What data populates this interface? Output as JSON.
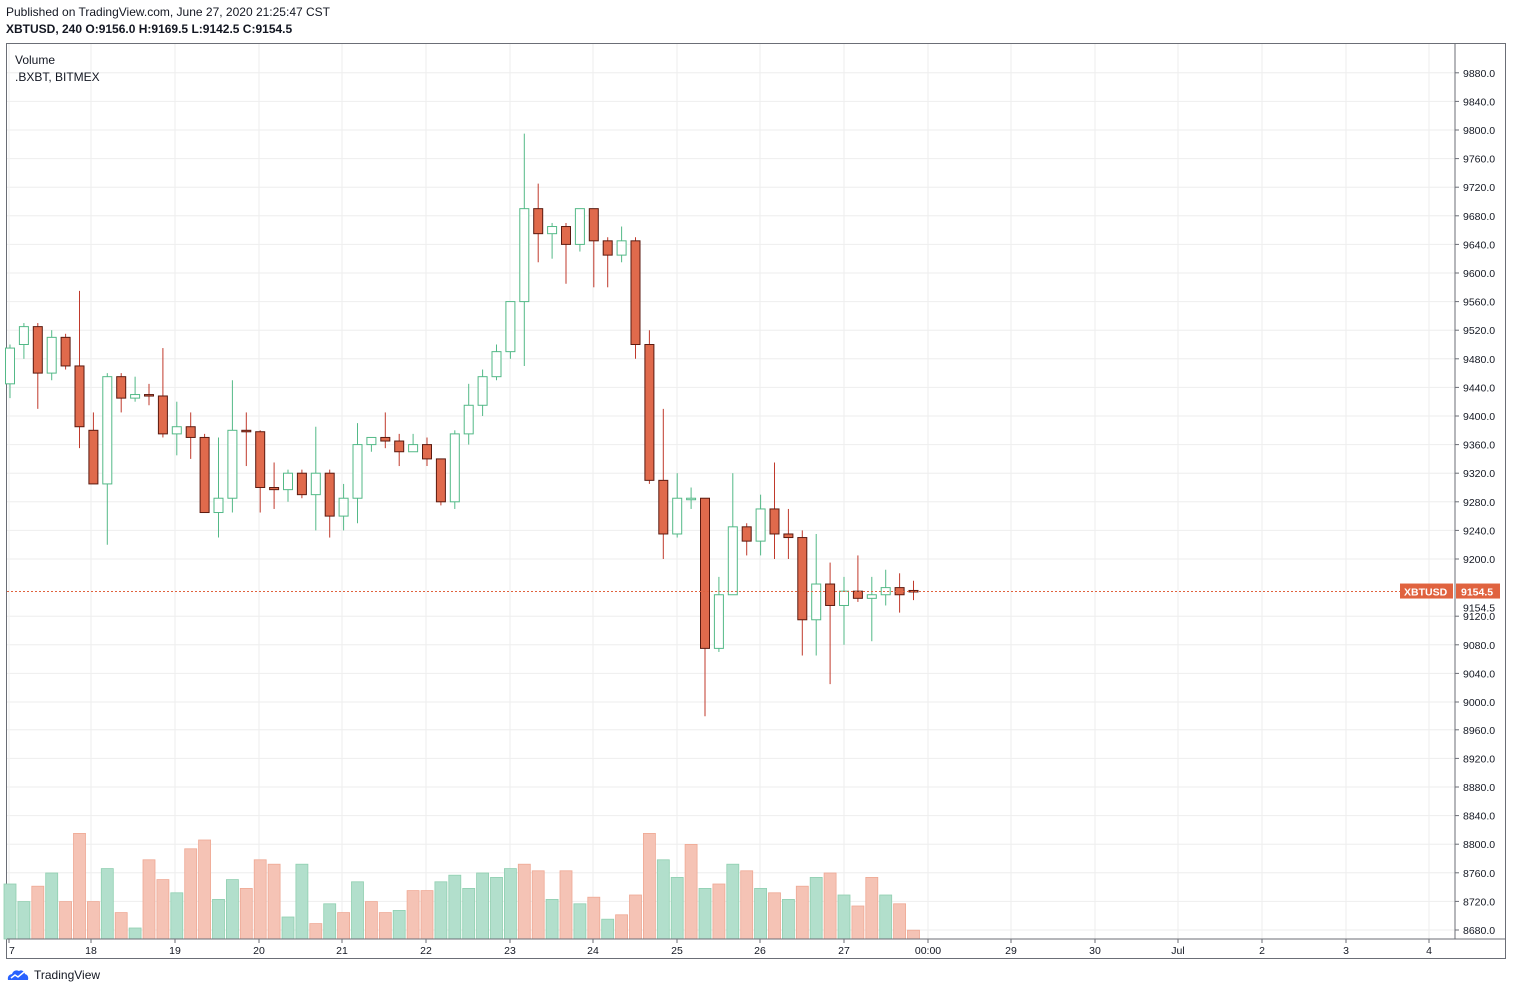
{
  "header": {
    "published": "Published on TradingView.com, June 27, 2020 21:25:47 CST",
    "symbol": "XBTUSD, 240",
    "ohlc": "O:9156.0 H:9169.5 L:9142.5 C:9154.5"
  },
  "legend": {
    "volume": "Volume",
    "symbol": ".BXBT, BITMEX"
  },
  "price_tag": {
    "label": "XBTUSD",
    "value": "9154.5",
    "axis_value": "9154.5"
  },
  "footer": {
    "brand": "TradingView"
  },
  "colors": {
    "up": "#53b987",
    "down": "#eb4d5c",
    "down_fill": "#e06a4c",
    "vol_up": "#b2dfcc",
    "vol_down": "#f5c3b5",
    "grid": "#eeeeee",
    "tag_bg": "#e0633f"
  },
  "chart_data": {
    "type": "candlestick",
    "y_ticks": [
      9000.0,
      9040.0,
      9080.0,
      9120.0,
      9200.0,
      9240.0,
      9280.0,
      9320.0,
      9360.0,
      9400.0,
      9440.0,
      9480.0,
      9520.0,
      9560.0,
      9600.0,
      9640.0,
      9680.0,
      9720.0,
      9760.0,
      9800.0,
      9840.0,
      9880.0
    ],
    "y_ticks_lower": [
      8680.0,
      8720.0,
      8760.0,
      8800.0,
      8840.0,
      8880.0,
      8920.0,
      8960.0
    ],
    "x_ticks": [
      "7",
      "18",
      "19",
      "20",
      "21",
      "22",
      "23",
      "24",
      "25",
      "26",
      "27",
      "00:00",
      "29",
      "30",
      "Jul",
      "2",
      "3",
      "4"
    ],
    "last_price": 9154.5,
    "candles": [
      [
        9445,
        9495,
        9425,
        9500
      ],
      [
        9500,
        9525,
        9480,
        9530
      ],
      [
        9525,
        9460,
        9410,
        9530
      ],
      [
        9460,
        9510,
        9450,
        9520
      ],
      [
        9510,
        9470,
        9465,
        9515
      ],
      [
        9470,
        9385,
        9355,
        9575
      ],
      [
        9380,
        9305,
        9305,
        9405
      ],
      [
        9305,
        9455,
        9220,
        9460
      ],
      [
        9455,
        9425,
        9405,
        9460
      ],
      [
        9425,
        9430,
        9420,
        9455
      ],
      [
        9430,
        9428,
        9415,
        9445
      ],
      [
        9428,
        9375,
        9370,
        9495
      ],
      [
        9375,
        9385,
        9345,
        9420
      ],
      [
        9385,
        9370,
        9340,
        9405
      ],
      [
        9370,
        9265,
        9265,
        9375
      ],
      [
        9265,
        9285,
        9230,
        9370
      ],
      [
        9285,
        9380,
        9265,
        9450
      ],
      [
        9380,
        9378,
        9330,
        9405
      ],
      [
        9378,
        9300,
        9265,
        9380
      ],
      [
        9300,
        9297,
        9270,
        9335
      ],
      [
        9297,
        9320,
        9280,
        9325
      ],
      [
        9320,
        9290,
        9285,
        9325
      ],
      [
        9290,
        9320,
        9240,
        9385
      ],
      [
        9320,
        9260,
        9230,
        9325
      ],
      [
        9260,
        9285,
        9240,
        9305
      ],
      [
        9285,
        9360,
        9250,
        9390
      ],
      [
        9360,
        9370,
        9350,
        9370
      ],
      [
        9370,
        9365,
        9355,
        9405
      ],
      [
        9365,
        9350,
        9330,
        9375
      ],
      [
        9350,
        9360,
        9350,
        9375
      ],
      [
        9360,
        9340,
        9330,
        9370
      ],
      [
        9340,
        9280,
        9275,
        9340
      ],
      [
        9280,
        9375,
        9270,
        9380
      ],
      [
        9375,
        9415,
        9360,
        9445
      ],
      [
        9415,
        9455,
        9400,
        9465
      ],
      [
        9455,
        9490,
        9450,
        9500
      ],
      [
        9490,
        9560,
        9480,
        9560
      ],
      [
        9560,
        9690,
        9470,
        9795
      ],
      [
        9690,
        9655,
        9615,
        9725
      ],
      [
        9655,
        9665,
        9620,
        9670
      ],
      [
        9665,
        9640,
        9585,
        9670
      ],
      [
        9640,
        9690,
        9630,
        9690
      ],
      [
        9690,
        9645,
        9580,
        9690
      ],
      [
        9645,
        9625,
        9580,
        9650
      ],
      [
        9625,
        9645,
        9615,
        9665
      ],
      [
        9645,
        9500,
        9480,
        9650
      ],
      [
        9500,
        9310,
        9305,
        9520
      ],
      [
        9310,
        9235,
        9200,
        9410
      ],
      [
        9235,
        9285,
        9230,
        9320
      ],
      [
        9285,
        9285,
        9270,
        9300
      ],
      [
        9285,
        9075,
        8980,
        9285
      ],
      [
        9075,
        9150,
        9070,
        9175
      ],
      [
        9150,
        9245,
        9150,
        9320
      ],
      [
        9245,
        9225,
        9205,
        9250
      ],
      [
        9225,
        9270,
        9205,
        9290
      ],
      [
        9270,
        9235,
        9200,
        9335
      ],
      [
        9235,
        9230,
        9200,
        9270
      ],
      [
        9230,
        9115,
        9065,
        9240
      ],
      [
        9115,
        9165,
        9065,
        9235
      ],
      [
        9165,
        9135,
        9025,
        9195
      ],
      [
        9135,
        9155,
        9080,
        9175
      ],
      [
        9155,
        9145,
        9140,
        9205
      ],
      [
        9145,
        9150,
        9085,
        9175
      ],
      [
        9150,
        9160,
        9135,
        9185
      ],
      [
        9160,
        9150,
        9125,
        9180
      ],
      [
        9156,
        9154.5,
        9142.5,
        9169.5
      ]
    ],
    "volume_scale_max": 100,
    "volumes": [
      [
        25,
        1
      ],
      [
        17,
        1
      ],
      [
        24,
        0
      ],
      [
        30,
        1
      ],
      [
        17,
        0
      ],
      [
        48,
        0
      ],
      [
        17,
        0
      ],
      [
        32,
        1
      ],
      [
        12,
        0
      ],
      [
        5,
        1
      ],
      [
        36,
        0
      ],
      [
        27,
        0
      ],
      [
        21,
        1
      ],
      [
        41,
        0
      ],
      [
        45,
        0
      ],
      [
        18,
        1
      ],
      [
        27,
        1
      ],
      [
        23,
        0
      ],
      [
        36,
        0
      ],
      [
        34,
        0
      ],
      [
        10,
        1
      ],
      [
        34,
        1
      ],
      [
        7,
        0
      ],
      [
        16,
        1
      ],
      [
        12,
        0
      ],
      [
        26,
        1
      ],
      [
        17,
        0
      ],
      [
        12,
        0
      ],
      [
        13,
        1
      ],
      [
        22,
        0
      ],
      [
        22,
        0
      ],
      [
        26,
        1
      ],
      [
        29,
        1
      ],
      [
        23,
        1
      ],
      [
        30,
        1
      ],
      [
        28,
        1
      ],
      [
        32,
        1
      ],
      [
        34,
        0
      ],
      [
        31,
        0
      ],
      [
        18,
        1
      ],
      [
        31,
        0
      ],
      [
        16,
        1
      ],
      [
        19,
        0
      ],
      [
        9,
        1
      ],
      [
        11,
        0
      ],
      [
        20,
        0
      ],
      [
        48,
        0
      ],
      [
        36,
        1
      ],
      [
        28,
        1
      ],
      [
        43,
        0
      ],
      [
        23,
        1
      ],
      [
        25,
        0
      ],
      [
        34,
        1
      ],
      [
        31,
        0
      ],
      [
        23,
        1
      ],
      [
        21,
        0
      ],
      [
        18,
        1
      ],
      [
        24,
        0
      ],
      [
        28,
        1
      ],
      [
        30,
        0
      ],
      [
        20,
        1
      ],
      [
        15,
        0
      ],
      [
        28,
        0
      ],
      [
        20,
        1
      ],
      [
        16,
        0
      ],
      [
        4,
        0
      ]
    ]
  }
}
